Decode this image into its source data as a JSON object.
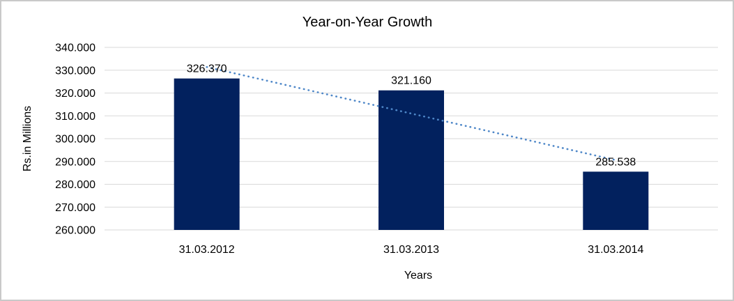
{
  "frame": {
    "border_color": "#c9c9c9",
    "background": "#ffffff"
  },
  "chart_data": {
    "type": "bar",
    "title": "Year-on-Year Growth",
    "xlabel": "Years",
    "ylabel": "Rs.in Millions",
    "categories": [
      "31.03.2012",
      "31.03.2013",
      "31.03.2014"
    ],
    "values": [
      326.37,
      321.16,
      285.538
    ],
    "data_labels": [
      "326.370",
      "321.160",
      "285.538"
    ],
    "ylim": [
      260,
      340
    ],
    "y_tick_values": [
      340,
      330,
      320,
      310,
      300,
      290,
      280,
      270,
      260
    ],
    "y_tick_labels": [
      "340.000",
      "330.000",
      "320.000",
      "310.000",
      "300.000",
      "290.000",
      "280.000",
      "270.000",
      "260.000"
    ],
    "grid": true,
    "legend": "none",
    "colors": {
      "bar": "#02215e",
      "trendline": "#4e87c8",
      "gridline": "#d9d9d9",
      "text": "#000000"
    },
    "trendline": {
      "type": "linear",
      "style": "dotted",
      "endpoint_values": [
        331.4,
        290.6
      ]
    }
  }
}
